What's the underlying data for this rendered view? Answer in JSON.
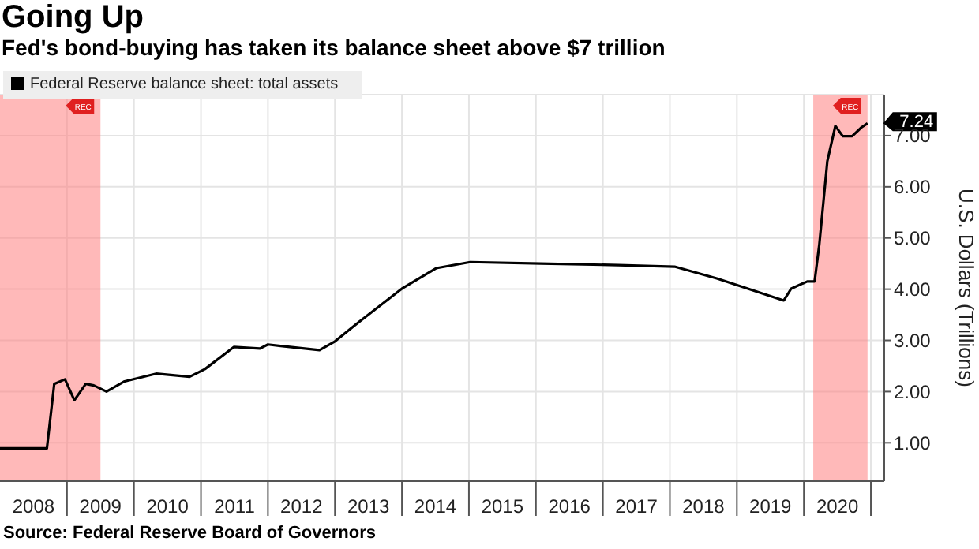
{
  "chart_data": {
    "type": "line",
    "title": "Going Up",
    "subtitle": "Fed's bond-buying has taken its balance sheet above $7 trillion",
    "ylabel": "U.S. Dollars (Trillions)",
    "x": [
      2008.0,
      2008.7,
      2008.81,
      2008.97,
      2009.11,
      2009.28,
      2009.4,
      2009.59,
      2009.86,
      2010.33,
      2010.83,
      2011.06,
      2011.49,
      2011.88,
      2012.0,
      2012.19,
      2012.77,
      2013.0,
      2013.35,
      2014.0,
      2014.51,
      2015.02,
      2016.07,
      2017.23,
      2018.07,
      2018.7,
      2019.7,
      2019.81,
      2020.05,
      2020.16,
      2020.23,
      2020.35,
      2020.47,
      2020.58,
      2020.72,
      2020.86,
      2020.95
    ],
    "series": [
      {
        "name": "Federal Reserve balance sheet: total assets",
        "color": "#000000",
        "values": [
          0.89,
          0.89,
          2.15,
          2.24,
          1.83,
          2.15,
          2.12,
          2.0,
          2.2,
          2.35,
          2.29,
          2.44,
          2.87,
          2.84,
          2.92,
          2.89,
          2.81,
          2.98,
          3.35,
          4.01,
          4.41,
          4.53,
          4.5,
          4.47,
          4.44,
          4.21,
          3.78,
          4.01,
          4.15,
          4.15,
          4.87,
          6.5,
          7.19,
          6.99,
          6.99,
          7.16,
          7.24
        ]
      }
    ],
    "xlim": [
      2008,
      2021.2
    ],
    "xticks": [
      {
        "value": 2008.5,
        "label": "2008"
      },
      {
        "value": 2009,
        "label": null
      },
      {
        "value": 2009.5,
        "label": "2009"
      },
      {
        "value": 2010,
        "label": null
      },
      {
        "value": 2010.5,
        "label": "2010"
      },
      {
        "value": 2011,
        "label": null
      },
      {
        "value": 2011.5,
        "label": "2011"
      },
      {
        "value": 2012,
        "label": null
      },
      {
        "value": 2012.5,
        "label": "2012"
      },
      {
        "value": 2013,
        "label": null
      },
      {
        "value": 2013.5,
        "label": "2013"
      },
      {
        "value": 2014,
        "label": null
      },
      {
        "value": 2014.5,
        "label": "2014"
      },
      {
        "value": 2015,
        "label": null
      },
      {
        "value": 2015.5,
        "label": "2015"
      },
      {
        "value": 2016,
        "label": null
      },
      {
        "value": 2016.5,
        "label": "2016"
      },
      {
        "value": 2017,
        "label": null
      },
      {
        "value": 2017.5,
        "label": "2017"
      },
      {
        "value": 2018,
        "label": null
      },
      {
        "value": 2018.5,
        "label": "2018"
      },
      {
        "value": 2019,
        "label": null
      },
      {
        "value": 2019.5,
        "label": "2019"
      },
      {
        "value": 2020,
        "label": null
      },
      {
        "value": 2020.5,
        "label": "2020"
      },
      {
        "value": 2021,
        "label": null
      }
    ],
    "ylim": [
      0.25,
      7.8
    ],
    "yticks": [
      {
        "value": 1,
        "label": "1.00"
      },
      {
        "value": 2,
        "label": "2.00"
      },
      {
        "value": 3,
        "label": "3.00"
      },
      {
        "value": 4,
        "label": "4.00"
      },
      {
        "value": 5,
        "label": "5.00"
      },
      {
        "value": 6,
        "label": "6.00"
      },
      {
        "value": 7,
        "label": "7.00"
      }
    ],
    "bands": [
      {
        "axis": "x",
        "from": 2008,
        "to": 2009.5,
        "label": "REC",
        "color": "#ff8080"
      },
      {
        "axis": "x",
        "from": 2020.14,
        "to": 2020.95,
        "label": "REC",
        "color": "#ff8080"
      }
    ],
    "annotations": [
      {
        "text": "7.24",
        "x": 2020.95,
        "y": 7.24
      },
      "Source: Federal Reserve Board of Governors"
    ],
    "grid": true,
    "legend": "top left",
    "marker": "none",
    "line_style": "solid"
  }
}
